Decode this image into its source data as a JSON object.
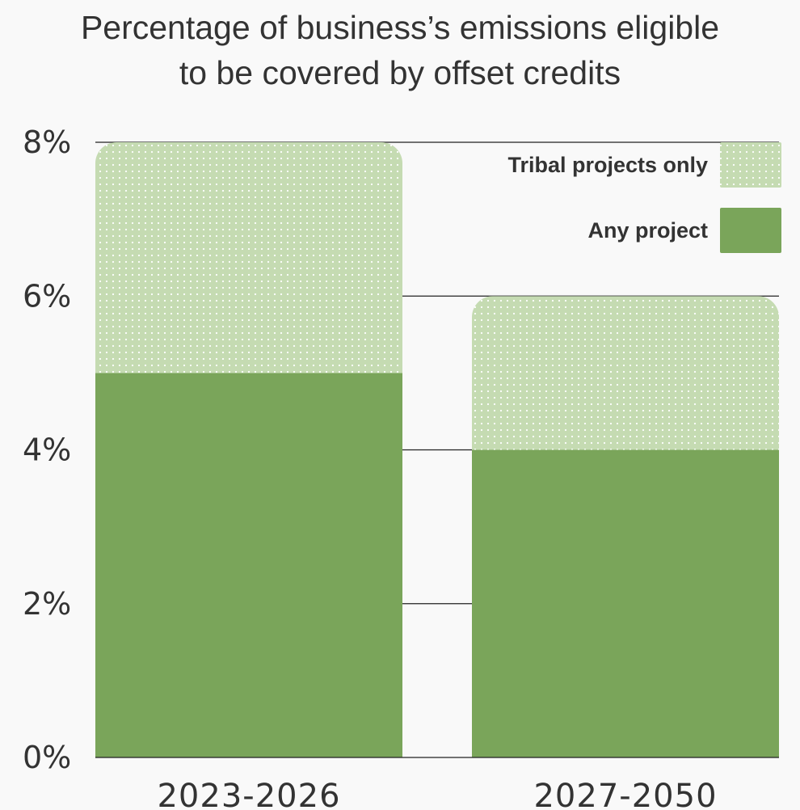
{
  "chart_data": {
    "type": "bar",
    "stacked": true,
    "title": "Percentage of business’s emissions eligible to be covered by offset credits",
    "title_lines": [
      "Percentage of business’s emissions eligible",
      "to be covered by offset credits"
    ],
    "categories": [
      "2023-2026",
      "2027-2050"
    ],
    "series": [
      {
        "name": "Any project",
        "values": [
          5,
          4
        ],
        "color": "#7aa55a",
        "fill": "solid"
      },
      {
        "name": "Tribal projects only",
        "values": [
          3,
          2
        ],
        "color": "#c5dbb2",
        "fill": "dotted"
      }
    ],
    "ylim": [
      0,
      8
    ],
    "yticks": [
      0,
      2,
      4,
      6,
      8
    ],
    "ytick_labels": [
      "0%",
      "2%",
      "4%",
      "6%",
      "8%"
    ],
    "xlabel": "",
    "ylabel": "",
    "grid": true,
    "legend": {
      "placement": "top-right",
      "order": [
        "Tribal projects only",
        "Any project"
      ]
    }
  }
}
